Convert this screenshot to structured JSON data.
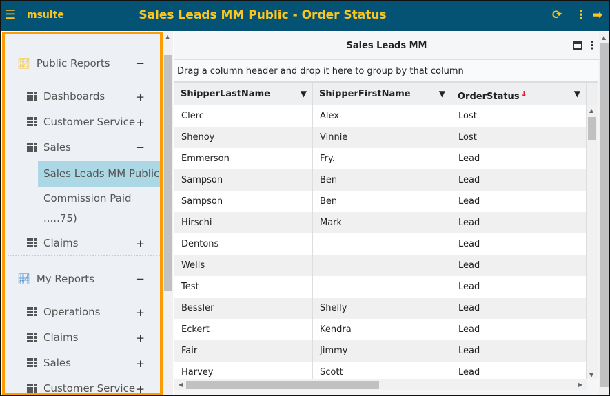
{
  "header": {
    "brand": "msuite",
    "title": "Sales Leads MM Public - Order Status",
    "icons": [
      "menu-icon",
      "refresh-icon",
      "more-vertical-icon",
      "logout-icon"
    ]
  },
  "sidebar": {
    "public_reports": {
      "label": "Public Reports",
      "toggle": "−"
    },
    "items": [
      {
        "label": "Dashboards",
        "toggle": "+"
      },
      {
        "label": "Customer Service",
        "toggle": "+"
      },
      {
        "label": "Sales",
        "toggle": "−"
      },
      {
        "label": "Sales Leads MM Public"
      },
      {
        "label": "Commission Paid"
      },
      {
        "label": ".....75)"
      },
      {
        "label": "Claims",
        "toggle": "+"
      }
    ],
    "my_reports": {
      "label": "My Reports",
      "toggle": "−"
    },
    "my_items": [
      {
        "label": "Operations",
        "toggle": "+"
      },
      {
        "label": "Claims",
        "toggle": "+"
      },
      {
        "label": "Sales",
        "toggle": "+"
      },
      {
        "label": "Customer Service",
        "toggle": "+"
      }
    ]
  },
  "panel": {
    "title": "Sales Leads MM",
    "group_hint": "Drag a column header and drop it here to group by that column"
  },
  "table": {
    "columns": [
      "ShipperLastName",
      "ShipperFirstName",
      "OrderStatus"
    ],
    "sort_indicator": "↓",
    "rows": [
      [
        "Clerc",
        "Alex",
        "Lost"
      ],
      [
        "Shenoy",
        "Vinnie",
        "Lost"
      ],
      [
        "Emmerson",
        "Fry.",
        "Lead"
      ],
      [
        "Sampson",
        "Ben",
        "Lead"
      ],
      [
        "Sampson",
        "Ben",
        "Lead"
      ],
      [
        "Hirschi",
        "Mark",
        "Lead"
      ],
      [
        "Dentons",
        "",
        "Lead"
      ],
      [
        "Wells",
        "",
        "Lead"
      ],
      [
        "Test",
        "",
        "Lead"
      ],
      [
        "Bessler",
        "Shelly",
        "Lead"
      ],
      [
        "Eckert",
        "Kendra",
        "Lead"
      ],
      [
        "Fair",
        "Jimmy",
        "Lead"
      ],
      [
        "Harvey",
        "Scott",
        "Lead"
      ]
    ]
  },
  "colors": {
    "header_bg": "#045274",
    "accent": "#fcc51f",
    "sidebar_border": "#fb9c05",
    "selected": "#acd8e6"
  }
}
